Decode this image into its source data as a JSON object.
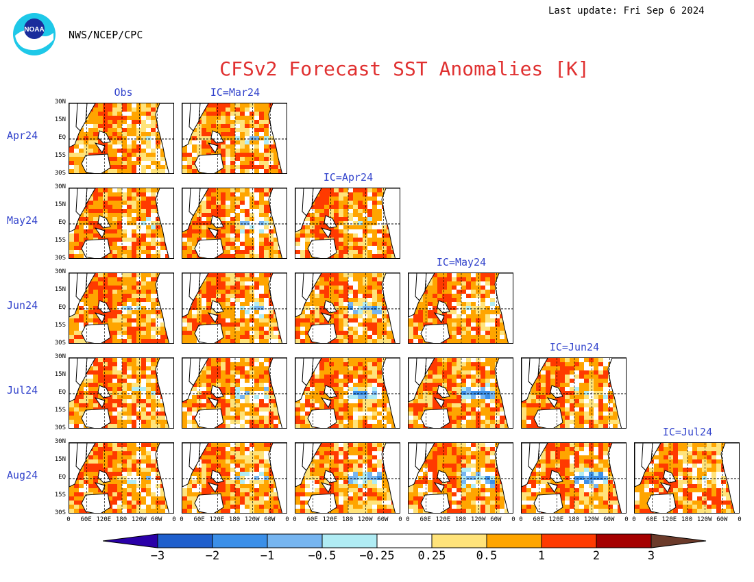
{
  "header": {
    "last_update": "Last update: Fri Sep  6 2024",
    "agency": "NWS/NCEP/CPC",
    "title": "CFSv2 Forecast SST Anomalies [K]",
    "logo_text": "NOAA"
  },
  "chart_data": {
    "type": "heatmap",
    "title": "CFSv2 Forecast SST Anomalies [K]",
    "columns": [
      "Obs",
      "IC=Mar24",
      "IC=Apr24",
      "IC=May24",
      "IC=Jun24",
      "IC=Jul24"
    ],
    "rows": [
      "Apr24",
      "May24",
      "Jun24",
      "Jul24",
      "Aug24"
    ],
    "panels_present": [
      [
        true,
        true,
        false,
        false,
        false,
        false
      ],
      [
        true,
        true,
        true,
        false,
        false,
        false
      ],
      [
        true,
        true,
        true,
        true,
        false,
        false
      ],
      [
        true,
        true,
        true,
        true,
        true,
        false
      ],
      [
        true,
        true,
        true,
        true,
        true,
        true
      ]
    ],
    "y_ticks": [
      "30N",
      "15N",
      "EQ",
      "15S",
      "30S"
    ],
    "x_ticks": [
      "0",
      "60E",
      "120E",
      "180",
      "120W",
      "60W",
      "0"
    ],
    "colorbar": {
      "ticks": [
        "−3",
        "−2",
        "−1",
        "−0.5",
        "−0.25",
        "0.25",
        "0.5",
        "1",
        "2",
        "3"
      ],
      "colors": [
        "#2a00a8",
        "#1f5fcc",
        "#3b8fe8",
        "#76b5f0",
        "#b0ecf4",
        "#ffffff",
        "#ffe37a",
        "#ffa500",
        "#ff3a00",
        "#a50000",
        "#6b3a2a"
      ]
    }
  }
}
